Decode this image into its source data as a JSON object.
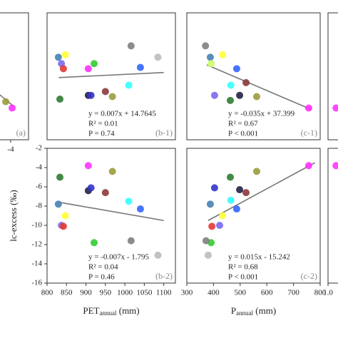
{
  "chart_data": [
    {
      "type": "scatter",
      "label": "(a)",
      "xlim": [
        -4.5,
        -3.5
      ],
      "ylim": [
        0,
        10
      ],
      "xticks": [
        -4
      ],
      "x": [
        -4.14,
        -3.96
      ],
      "values": [
        3.0,
        2.5
      ],
      "colors": [
        "#9b9b3c",
        "#ff33ff"
      ],
      "trend": {
        "x": [
          -4.5,
          -3.9
        ],
        "values": [
          4.0,
          2.6
        ]
      }
    },
    {
      "type": "scatter",
      "label": "(b-1)",
      "xlim": [
        800,
        1130
      ],
      "ylim": [
        0,
        10
      ],
      "x": [
        829,
        847,
        837,
        842,
        906,
        921,
        833,
        906,
        913,
        968,
        950,
        1010,
        1016,
        1040,
        1085
      ],
      "values": [
        6.5,
        6.7,
        6.0,
        5.6,
        5.6,
        6.0,
        3.2,
        3.5,
        3.5,
        3.4,
        3.8,
        4.3,
        7.4,
        5.7,
        6.5
      ],
      "colors": [
        "#4682b4",
        "#ffff33",
        "#7b68ee",
        "#e53935",
        "#ff33ff",
        "#33cc33",
        "#2e7d32",
        "#222244",
        "#3333cc",
        "#9b9b3c",
        "#8b3a3a",
        "#33ffff",
        "#808080",
        "#3366ff",
        "#bbbbbb"
      ],
      "trend": {
        "x": [
          830,
          1100
        ],
        "values": [
          4.9,
          5.3
        ]
      },
      "annotations": [
        "y = 0.007x + 14.7645",
        "R² = 0.01",
        "P = 0.74"
      ]
    },
    {
      "type": "scatter",
      "label": "(c-1)",
      "xlim": [
        300,
        800
      ],
      "ylim": [
        0,
        10
      ],
      "x": [
        370,
        388,
        391,
        404,
        434,
        463,
        465,
        498,
        487,
        522,
        562,
        757
      ],
      "values": [
        7.4,
        6.5,
        6.0,
        3.5,
        6.7,
        3.1,
        4.3,
        3.5,
        5.6,
        4.5,
        3.4,
        2.5
      ],
      "colors": [
        "#808080",
        "#4682b4",
        "#ccff66",
        "#7b68ee",
        "#ffff33",
        "#2e7d32",
        "#33ffff",
        "#222244",
        "#3366ff",
        "#8b3a3a",
        "#9b9b3c",
        "#ff33ff"
      ],
      "trend": {
        "x": [
          375,
          765
        ],
        "values": [
          5.9,
          2.4
        ]
      },
      "annotations": [
        "y = -0.035x + 37.399",
        "R² = 0.67",
        "P < 0.001"
      ]
    },
    {
      "type": "scatter",
      "xlim": [
        1.0,
        1.5
      ],
      "ylim": [
        0,
        10
      ],
      "x": [
        1.28
      ],
      "values": [
        2.5
      ],
      "colors": [
        "#ff33ff"
      ]
    },
    {
      "type": "scatter",
      "label": "(b-2)",
      "xlim": [
        800,
        1130
      ],
      "ylim": [
        -16,
        -2
      ],
      "xticks": [
        800,
        850,
        900,
        950,
        1000,
        1050,
        1100
      ],
      "yticks": [
        -2,
        -4,
        -6,
        -8,
        -10,
        -12,
        -14,
        -16
      ],
      "x_label": [
        "PET",
        "annual",
        " (mm)"
      ],
      "y_label": "lc-excess (‰)",
      "x": [
        833,
        829,
        847,
        837,
        842,
        906,
        906,
        913,
        968,
        950,
        921,
        1010,
        1040,
        1016,
        1085
      ],
      "values": [
        -5.0,
        -7.8,
        -9.0,
        -10.0,
        -10.1,
        -3.8,
        -6.4,
        -6.1,
        -4.4,
        -6.6,
        -11.8,
        -7.5,
        -8.3,
        -11.6,
        -13.1
      ],
      "colors": [
        "#2e7d32",
        "#4682b4",
        "#ffff33",
        "#7b68ee",
        "#e53935",
        "#ff33ff",
        "#222244",
        "#3333cc",
        "#9b9b3c",
        "#8b3a3a",
        "#33cc33",
        "#33ffff",
        "#3366ff",
        "#808080",
        "#bbbbbb"
      ],
      "trend": {
        "x": [
          830,
          1100
        ],
        "values": [
          -7.6,
          -9.5
        ]
      },
      "annotations": [
        "y = -0.007x - 1.795",
        "R² = 0.04",
        "P = 0.46"
      ]
    },
    {
      "type": "scatter",
      "label": "(c-2)",
      "xlim": [
        300,
        800
      ],
      "ylim": [
        -16,
        -2
      ],
      "xticks": [
        300,
        400,
        500,
        600,
        700,
        800
      ],
      "x_label": [
        "P",
        "annual",
        " (mm)"
      ],
      "x": [
        463,
        465,
        388,
        404,
        394,
        423,
        391,
        372,
        380,
        434,
        487,
        562,
        522,
        498,
        757
      ],
      "values": [
        -5.0,
        -7.4,
        -7.8,
        -6.1,
        -10.1,
        -10.0,
        -11.8,
        -11.6,
        -13.1,
        -9.0,
        -8.3,
        -4.4,
        -6.6,
        -6.3,
        -3.8
      ],
      "colors": [
        "#2e7d32",
        "#33ffff",
        "#4682b4",
        "#3333cc",
        "#e53935",
        "#7b68ee",
        "#33cc33",
        "#808080",
        "#bbbbbb",
        "#ffff33",
        "#3366ff",
        "#9b9b3c",
        "#8b3a3a",
        "#222244",
        "#ff33ff"
      ],
      "trend": {
        "x": [
          380,
          780
        ],
        "values": [
          -9.5,
          -3.5
        ]
      },
      "annotations": [
        "y = 0.015x - 15.242",
        "R² = 0.68",
        "P  < 0.001"
      ]
    },
    {
      "type": "scatter",
      "xlim": [
        1.0,
        1.5
      ],
      "ylim": [
        -16,
        -2
      ],
      "xticks": [
        {
          "value": 1.0,
          "label": "1.0"
        }
      ],
      "x": [
        1.28
      ],
      "values": [
        -3.8
      ],
      "colors": [
        "#ff33ff"
      ]
    }
  ]
}
